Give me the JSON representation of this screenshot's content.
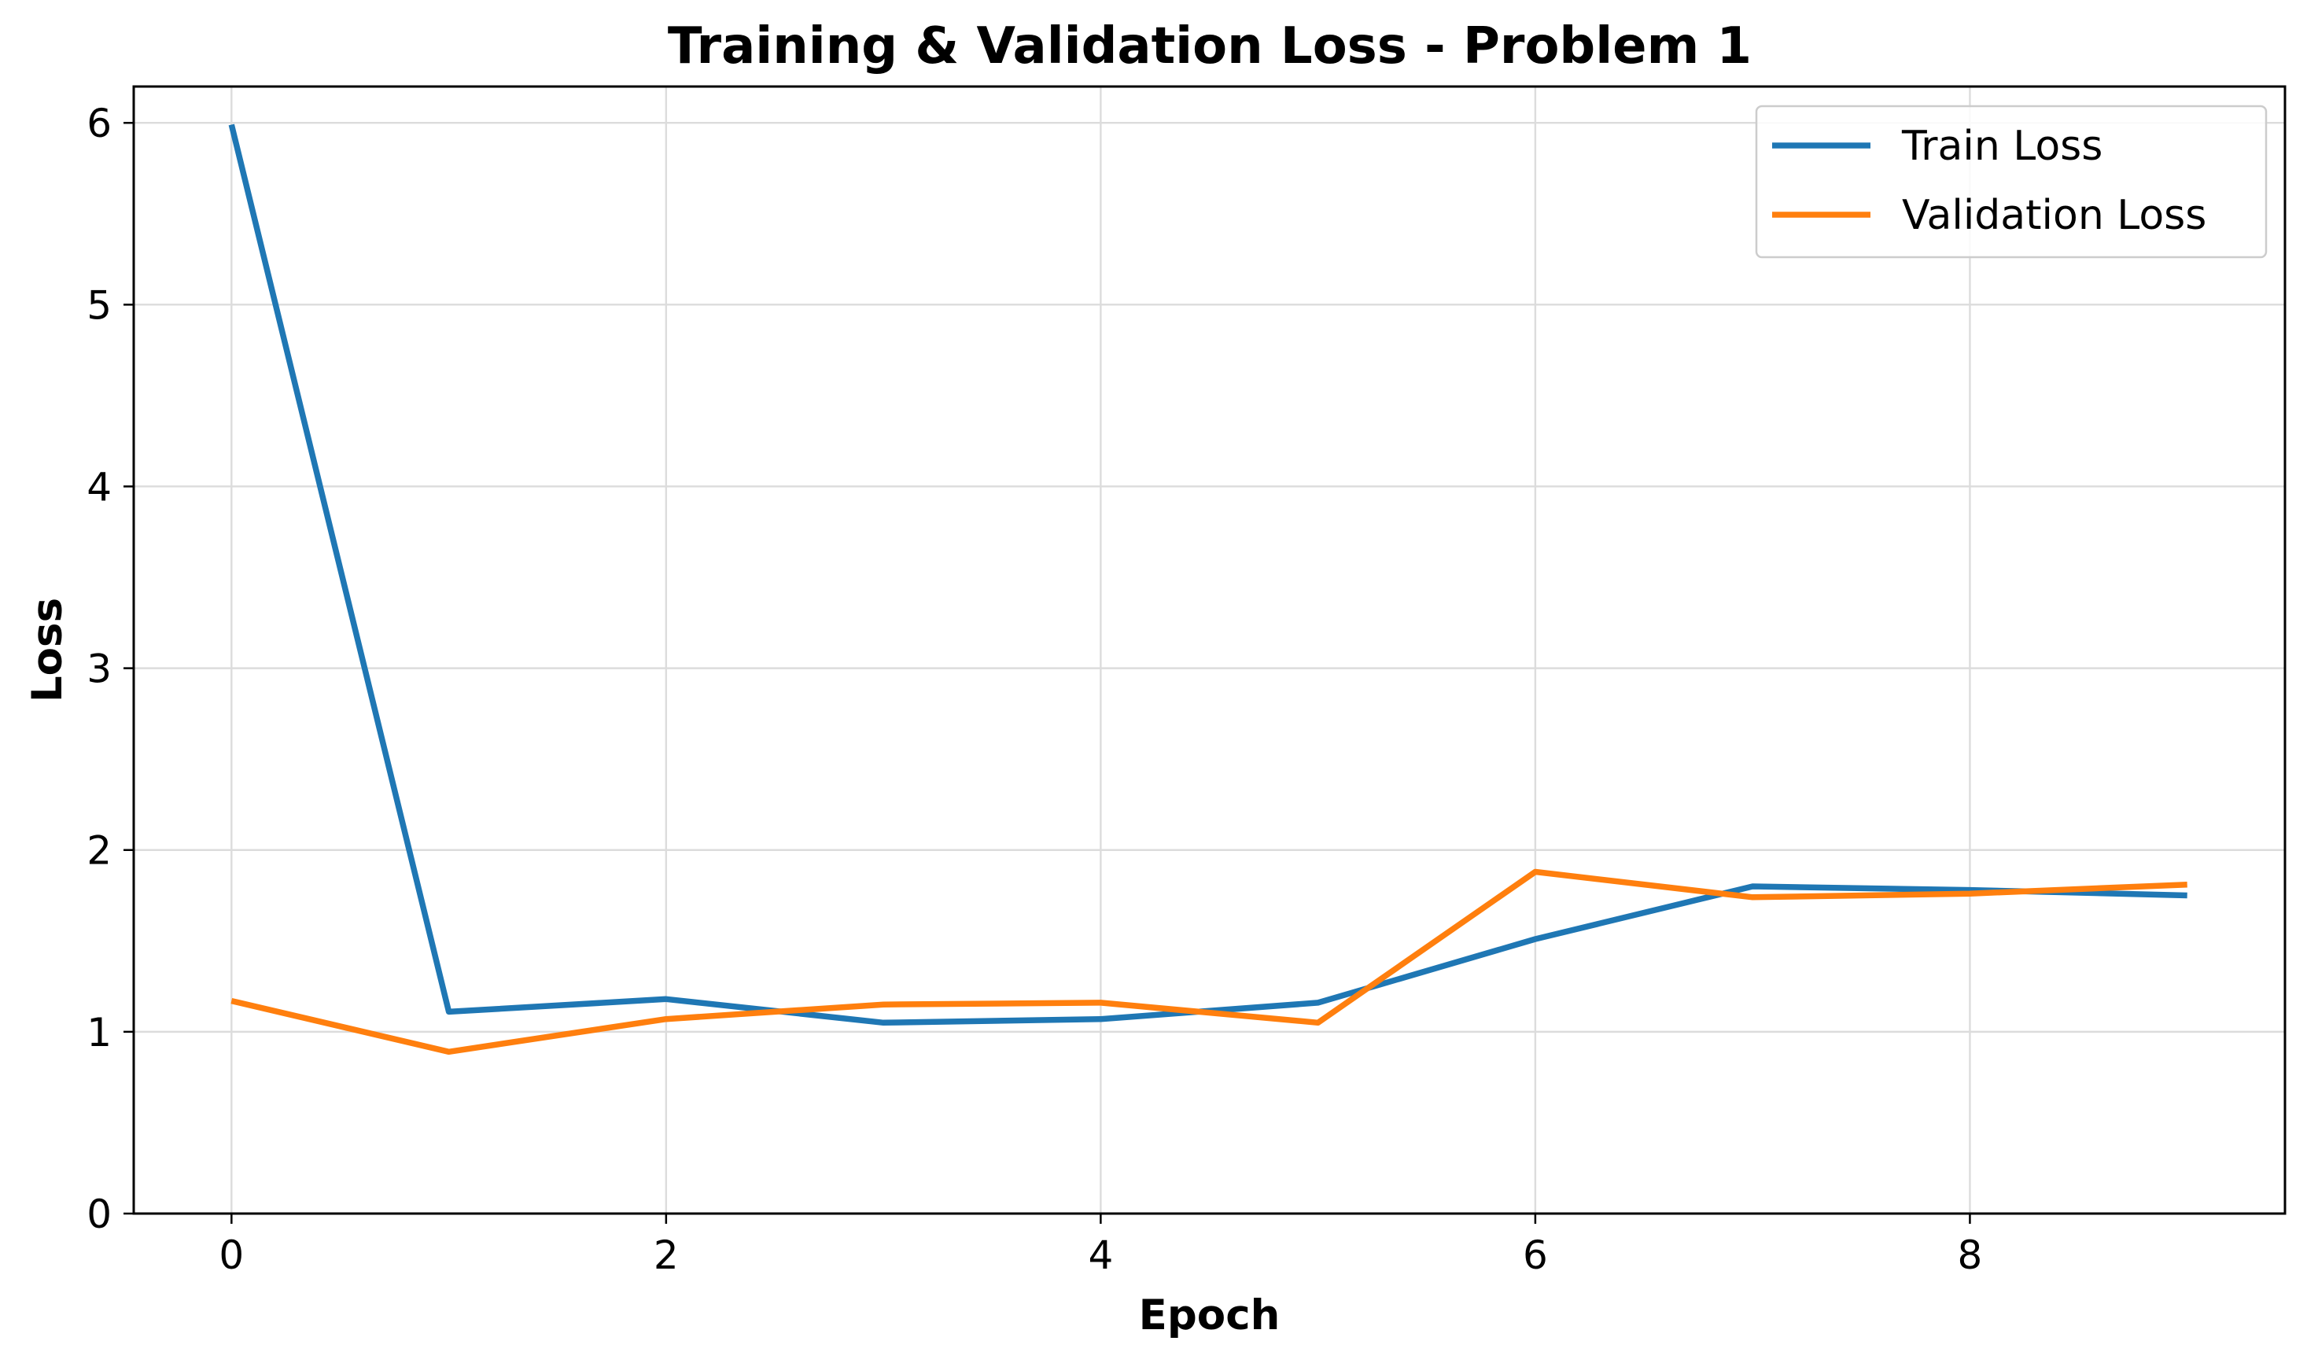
{
  "chart_data": {
    "type": "line",
    "title": "Training & Validation Loss - Problem 1",
    "xlabel": "Epoch",
    "ylabel": "Loss",
    "xlim": [
      -0.45,
      9.45
    ],
    "ylim": [
      0,
      6.2
    ],
    "xticks": [
      "0",
      "2",
      "4",
      "6",
      "8"
    ],
    "yticks": [
      "0",
      "1",
      "2",
      "3",
      "4",
      "5",
      "6"
    ],
    "grid": true,
    "legend_position": "top-right",
    "x": [
      0,
      1,
      2,
      3,
      4,
      5,
      6,
      7,
      8,
      9
    ],
    "series": [
      {
        "name": "Train Loss",
        "color": "#1f77b4",
        "values": [
          5.99,
          1.11,
          1.18,
          1.05,
          1.07,
          1.16,
          1.51,
          1.8,
          1.78,
          1.75
        ]
      },
      {
        "name": "Validation Loss",
        "color": "#ff7f0e",
        "values": [
          1.17,
          0.89,
          1.07,
          1.15,
          1.16,
          1.05,
          1.88,
          1.74,
          1.76,
          1.81
        ]
      }
    ]
  }
}
